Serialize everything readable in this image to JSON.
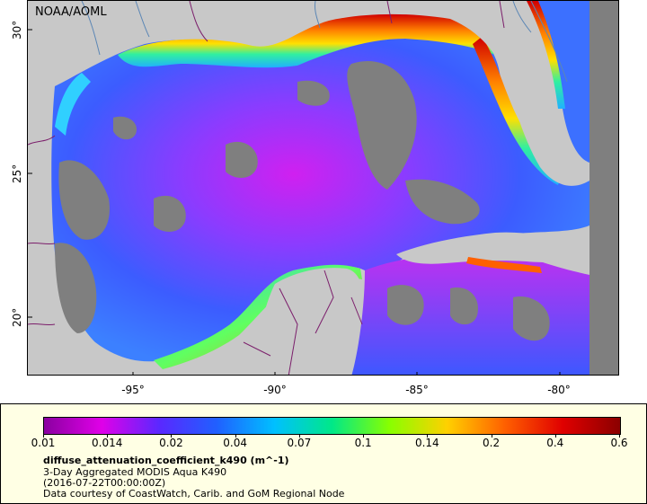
{
  "map": {
    "credit": "NOAA/AOML",
    "lat_ticks": [
      "30°",
      "25°",
      "20°"
    ],
    "lon_ticks": [
      "-95°",
      "-90°",
      "-85°",
      "-80°"
    ],
    "colors": {
      "land": "#c8c8c8",
      "nodata": "#7f7f7f",
      "boundary": "#7b1e6b",
      "river": "#5b86b5"
    }
  },
  "legend": {
    "colorbar_labels": [
      "0.01",
      "0.014",
      "0.02",
      "0.04",
      "0.07",
      "0.1",
      "0.14",
      "0.2",
      "0.4",
      "0.6"
    ],
    "colorbar_colors": [
      "#8a00a0",
      "#e000e8",
      "#5a28ff",
      "#2060ff",
      "#00c0ff",
      "#00e888",
      "#88ff00",
      "#ffd000",
      "#ff6000",
      "#e00000",
      "#8b0000"
    ],
    "title": "diffuse_attenuation_coefficient_k490 (m^-1)",
    "line1": "3-Day Aggregated MODIS Aqua K490",
    "line2": "(2016-07-22T00:00:00Z)",
    "line3": "Data courtesy of CoastWatch, Carib. and GoM Regional Node"
  }
}
